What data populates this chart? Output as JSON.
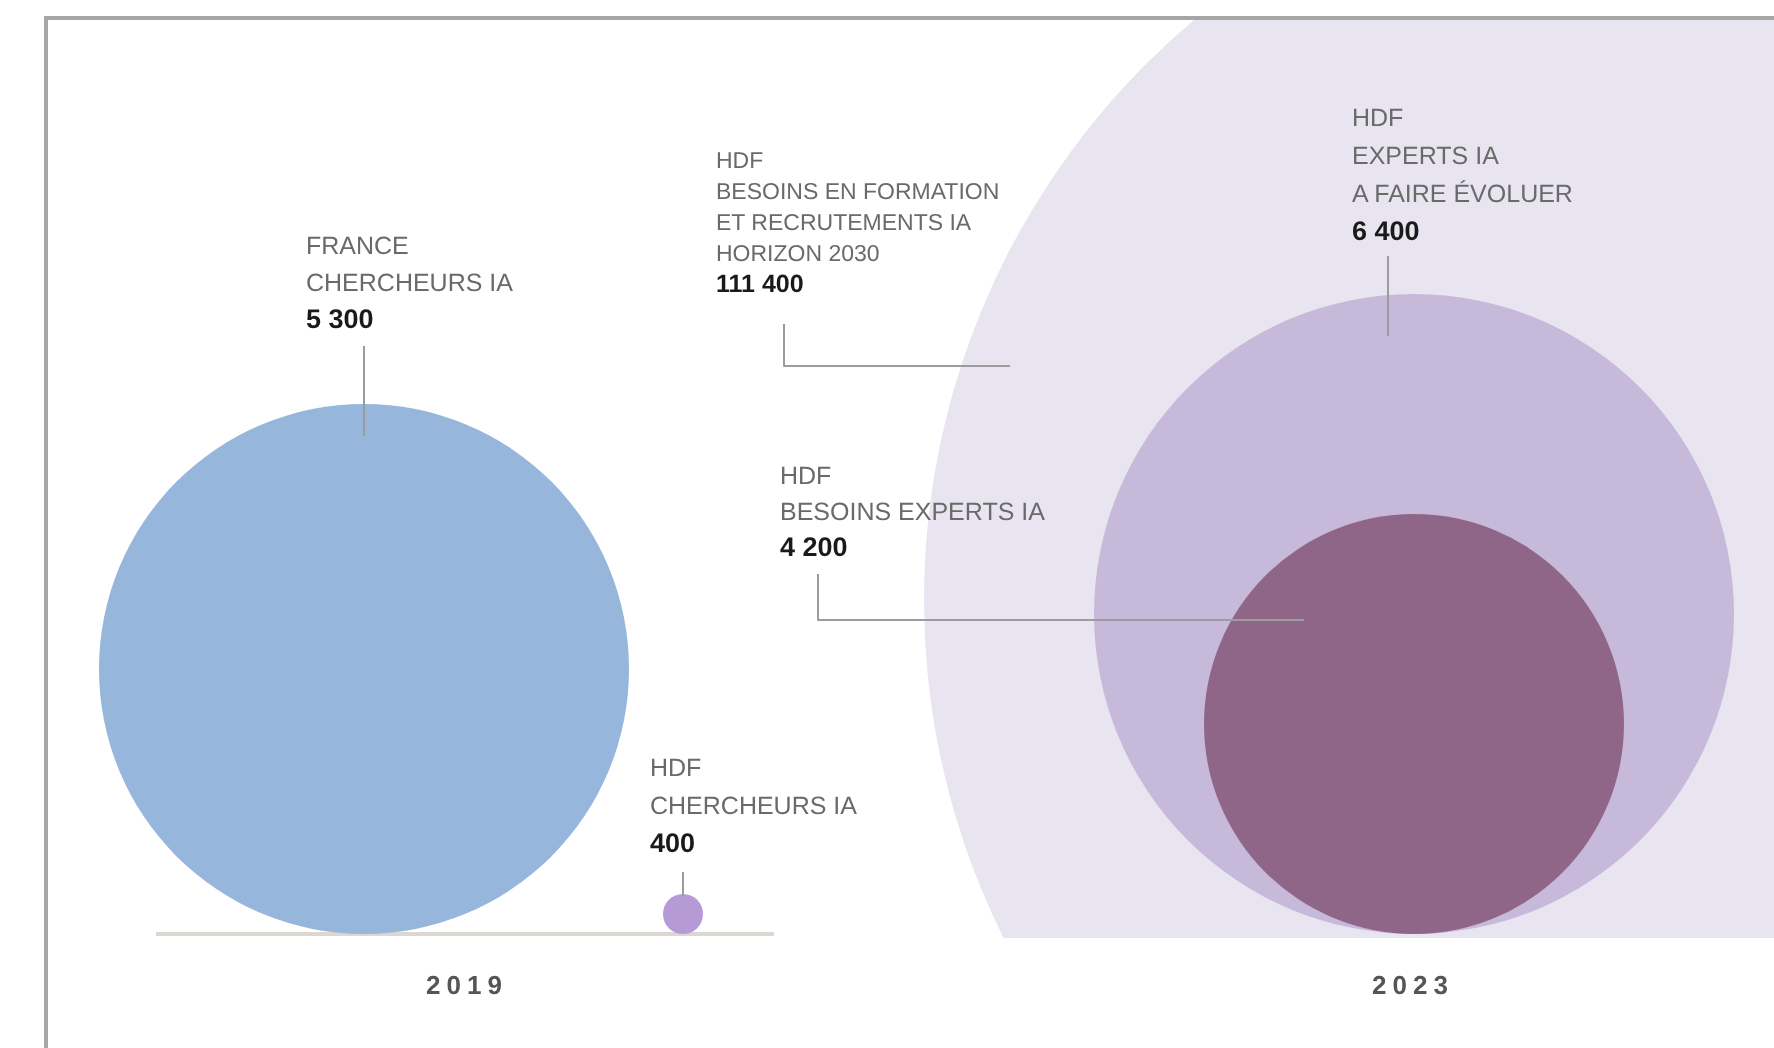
{
  "chart_data": {
    "type": "other",
    "categories": [
      "FRANCE\nCHERCHEURS IA",
      "HDF\nCHERCHEURS IA",
      "HDF\nBESOINS EN FORMATION\nET RECRUTEMENTS IA\nHORIZON 2030",
      "HDF\nEXPERTS IA\nA FAIRE ÉVOLUER",
      "HDF\nBESOINS EXPERTS IA"
    ],
    "values": [
      5300,
      400,
      111400,
      6400,
      4200
    ],
    "colors": [
      "#96b6dc",
      "#b59ad6",
      "#e8e5f1",
      "#c6b9da",
      "#8f6688"
    ],
    "data_labels": true,
    "annotations": [
      "2019",
      "2023"
    ]
  }
}
